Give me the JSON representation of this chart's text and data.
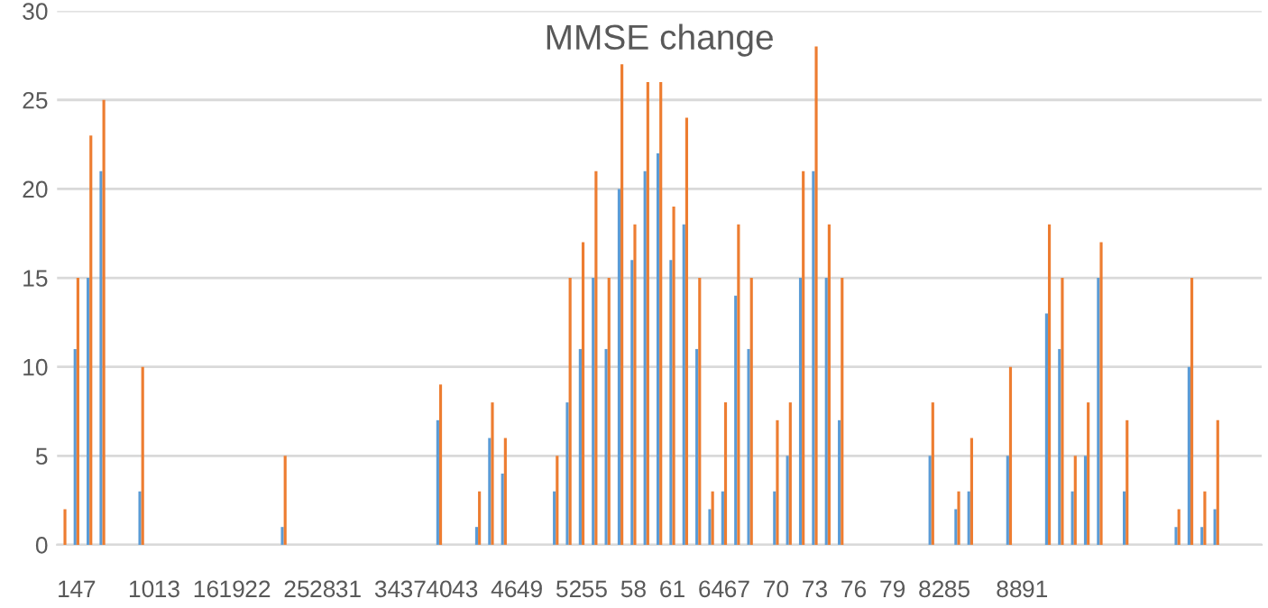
{
  "chart_data": {
    "type": "bar",
    "title": "MMSE change",
    "categories": [
      "1",
      "4",
      "7",
      null,
      null,
      null,
      "10",
      null,
      "13",
      null,
      null,
      "16",
      null,
      "19",
      null,
      "22",
      null,
      null,
      "25",
      null,
      "28",
      null,
      "31",
      null,
      null,
      "34",
      null,
      "37",
      null,
      "40",
      null,
      "43",
      null,
      null,
      "46",
      null,
      "49",
      null,
      null,
      "52",
      null,
      "55",
      null,
      null,
      "58",
      null,
      null,
      "61",
      null,
      null,
      "64",
      null,
      "67",
      null,
      null,
      "70",
      null,
      null,
      "73",
      null,
      null,
      "76",
      null,
      null,
      "79",
      null,
      null,
      "82",
      null,
      "85",
      null,
      null,
      null,
      "88",
      null,
      "91",
      null,
      null,
      null,
      null,
      null,
      null,
      null,
      null,
      null,
      null,
      null,
      null,
      null,
      null,
      null,
      null,
      null
    ],
    "series": [
      {
        "color": "#5b9bd5",
        "values": [
          null,
          11,
          15,
          21,
          null,
          null,
          3,
          null,
          null,
          null,
          null,
          null,
          null,
          null,
          null,
          null,
          null,
          1,
          null,
          null,
          null,
          null,
          null,
          null,
          null,
          null,
          null,
          null,
          null,
          7,
          null,
          null,
          1,
          6,
          4,
          null,
          null,
          null,
          3,
          8,
          11,
          15,
          11,
          20,
          16,
          21,
          22,
          16,
          18,
          11,
          2,
          3,
          14,
          11,
          null,
          3,
          5,
          15,
          21,
          15,
          7,
          null,
          null,
          null,
          null,
          null,
          null,
          5,
          null,
          2,
          3,
          null,
          null,
          5,
          null,
          null,
          13,
          11,
          3,
          5,
          15,
          null,
          3,
          null,
          null,
          null,
          1,
          10,
          1,
          2,
          null,
          null,
          null
        ]
      },
      {
        "color": "#ed7d31",
        "values": [
          2,
          15,
          23,
          25,
          null,
          null,
          10,
          null,
          null,
          null,
          null,
          null,
          null,
          null,
          null,
          null,
          null,
          5,
          null,
          null,
          null,
          null,
          null,
          null,
          null,
          null,
          null,
          null,
          null,
          9,
          null,
          null,
          3,
          8,
          6,
          null,
          null,
          null,
          5,
          15,
          17,
          21,
          15,
          27,
          18,
          26,
          26,
          19,
          24,
          15,
          3,
          8,
          18,
          15,
          null,
          7,
          8,
          21,
          28,
          18,
          15,
          null,
          null,
          null,
          null,
          null,
          null,
          8,
          null,
          3,
          6,
          null,
          null,
          10,
          null,
          null,
          18,
          15,
          5,
          8,
          17,
          null,
          7,
          null,
          null,
          null,
          2,
          15,
          3,
          7,
          null,
          null,
          null
        ]
      }
    ],
    "ylim": [
      0,
      30
    ],
    "yticks": [
      0,
      5,
      10,
      15,
      20,
      25,
      30
    ],
    "grid": "y"
  }
}
